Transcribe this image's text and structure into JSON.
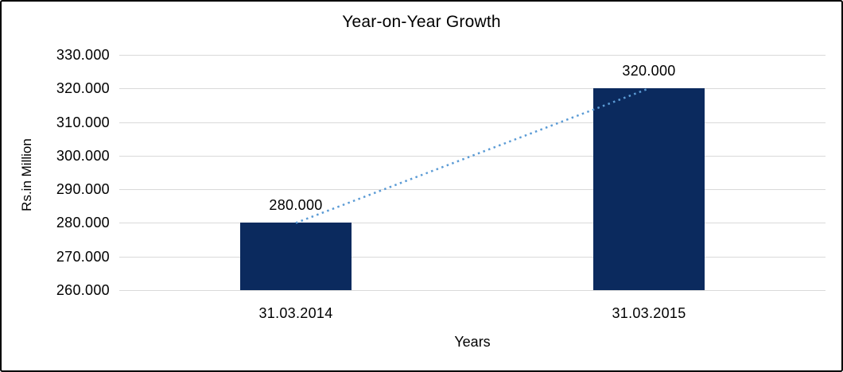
{
  "window": {
    "background_color": "#ffffff",
    "frame_border_color": "#000000"
  },
  "chart_data": {
    "type": "bar",
    "title": "Year-on-Year Growth",
    "xlabel": "Years",
    "ylabel": "Rs.in Million",
    "categories": [
      "31.03.2014",
      "31.03.2015"
    ],
    "values": [
      280,
      320
    ],
    "data_labels": [
      "280.000",
      "320.000"
    ],
    "y_tick_values": [
      330,
      320,
      310,
      300,
      290,
      280,
      270,
      260
    ],
    "y_tick_labels": [
      "330.000",
      "320.000",
      "310.000",
      "300.000",
      "290.000",
      "280.000",
      "270.000",
      "260.000"
    ],
    "ylim": [
      260,
      330
    ],
    "grid": true,
    "legend": "none",
    "bar_color": "#0b2a5e",
    "gridline_color": "#d9d9d9",
    "text_color": "#000000",
    "trendline": {
      "style": "dotted",
      "color": "#5b9bd5",
      "from_value": 280,
      "to_value": 320
    }
  }
}
